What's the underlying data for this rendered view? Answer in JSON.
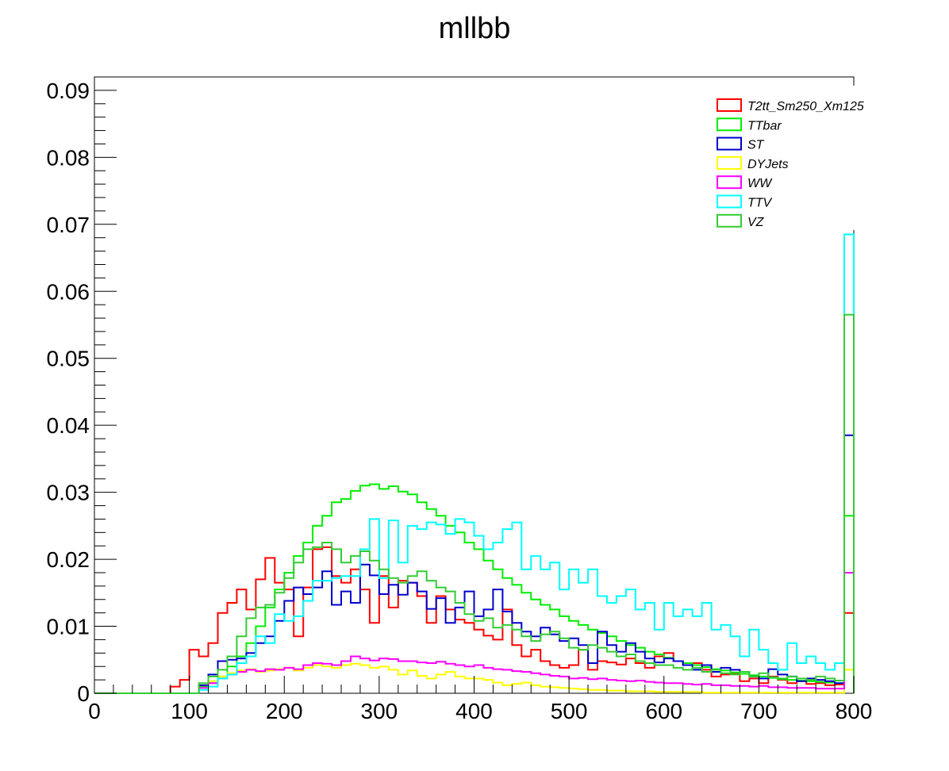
{
  "chart_data": {
    "type": "line",
    "title": "mllbb",
    "xlabel": "",
    "ylabel": "",
    "xlim": [
      0,
      800
    ],
    "ylim": [
      0,
      0.092
    ],
    "bin_width": 10,
    "grid": false,
    "legend_position": "top-right",
    "x_ticks": [
      "0",
      "100",
      "200",
      "300",
      "400",
      "500",
      "600",
      "700",
      "800"
    ],
    "y_ticks": [
      "0",
      "0.01",
      "0.02",
      "0.03",
      "0.04",
      "0.05",
      "0.06",
      "0.07",
      "0.08",
      "0.09"
    ],
    "series": [
      {
        "name": "T2tt_Sm250_Xm125",
        "color": "#ff0000",
        "values": [
          0,
          0,
          0,
          0,
          0,
          0,
          0,
          0,
          0.001,
          0.002,
          0.0065,
          0.0055,
          0.0075,
          0.012,
          0.0135,
          0.0155,
          0.0125,
          0.017,
          0.0202,
          0.0165,
          0.0155,
          0.0085,
          0.0158,
          0.0215,
          0.0218,
          0.0175,
          0.0165,
          0.0185,
          0.0155,
          0.0105,
          0.0175,
          0.0128,
          0.0168,
          0.0165,
          0.0145,
          0.0105,
          0.0145,
          0.0125,
          0.011,
          0.0105,
          0.0095,
          0.0086,
          0.008,
          0.0125,
          0.0072,
          0.0055,
          0.0065,
          0.0048,
          0.0042,
          0.0038,
          0.0042,
          0.0065,
          0.0035,
          0.0048,
          0.0046,
          0.0043,
          0.0052,
          0.0045,
          0.0038,
          0.0055,
          0.006,
          0.0048,
          0.0042,
          0.0045,
          0.0035,
          0.0025,
          0.0028,
          0.003,
          0.0018,
          0.0022,
          0.0015,
          0.0025,
          0.002,
          0.0015,
          0.0018,
          0.0014,
          0.0015,
          0.0012,
          0.0013,
          0.012
        ]
      },
      {
        "name": "TTbar",
        "color": "#00ee00",
        "values": [
          0,
          0,
          0,
          0,
          0,
          0,
          0,
          0,
          0,
          0,
          0,
          0.001,
          0.0015,
          0.0025,
          0.004,
          0.0055,
          0.0075,
          0.01,
          0.0128,
          0.0155,
          0.018,
          0.0205,
          0.0225,
          0.025,
          0.0265,
          0.0285,
          0.029,
          0.0302,
          0.031,
          0.0312,
          0.0305,
          0.0309,
          0.0301,
          0.0297,
          0.0285,
          0.0275,
          0.0265,
          0.025,
          0.024,
          0.0225,
          0.0215,
          0.0198,
          0.0185,
          0.0172,
          0.0162,
          0.015,
          0.014,
          0.0132,
          0.0125,
          0.0115,
          0.0108,
          0.0102,
          0.0095,
          0.009,
          0.0085,
          0.0078,
          0.0072,
          0.0068,
          0.0062,
          0.0058,
          0.0053,
          0.0048,
          0.0045,
          0.0042,
          0.0039,
          0.0036,
          0.0034,
          0.0031,
          0.0029,
          0.0027,
          0.0025,
          0.0023,
          0.0021,
          0.002,
          0.0019,
          0.0018,
          0.0017,
          0.0016,
          0.0015,
          0.0265
        ]
      },
      {
        "name": "ST",
        "color": "#0000cc",
        "values": [
          0,
          0,
          0,
          0,
          0,
          0,
          0,
          0,
          0,
          0,
          0,
          0.0012,
          0.0028,
          0.0048,
          0.005,
          0.0052,
          0.006,
          0.0075,
          0.0085,
          0.0108,
          0.0138,
          0.0158,
          0.0148,
          0.0158,
          0.0182,
          0.0132,
          0.0152,
          0.0135,
          0.0192,
          0.0176,
          0.0148,
          0.0162,
          0.0147,
          0.0165,
          0.0152,
          0.0126,
          0.0142,
          0.0105,
          0.0128,
          0.0152,
          0.0115,
          0.0125,
          0.0155,
          0.0122,
          0.0105,
          0.0092,
          0.0085,
          0.0098,
          0.0088,
          0.0078,
          0.0082,
          0.0072,
          0.0045,
          0.0092,
          0.0072,
          0.0062,
          0.0075,
          0.0062,
          0.0052,
          0.0046,
          0.0052,
          0.0048,
          0.0042,
          0.0035,
          0.0042,
          0.0032,
          0.0038,
          0.0035,
          0.0032,
          0.0025,
          0.0022,
          0.0036,
          0.0028,
          0.0025,
          0.0018,
          0.0022,
          0.002,
          0.0018,
          0.0015,
          0.0385
        ]
      },
      {
        "name": "DYJets",
        "color": "#ffff00",
        "values": [
          0,
          0,
          0,
          0,
          0,
          0,
          0,
          0,
          0,
          0,
          0,
          0.0008,
          0.0018,
          0.0025,
          0.003,
          0.0034,
          0.0036,
          0.0032,
          0.0034,
          0.0036,
          0.0038,
          0.0034,
          0.0038,
          0.0042,
          0.004,
          0.0038,
          0.0042,
          0.0044,
          0.0042,
          0.0038,
          0.004,
          0.0035,
          0.0028,
          0.0034,
          0.0026,
          0.0022,
          0.0028,
          0.0032,
          0.0025,
          0.0022,
          0.0022,
          0.002,
          0.0016,
          0.0012,
          0.0014,
          0.0016,
          0.0012,
          0.001,
          0.0009,
          0.0008,
          0.0007,
          0.0006,
          0.0005,
          0.0005,
          0.0004,
          0.0004,
          0.0003,
          0.0003,
          0.0003,
          0.0002,
          0.0002,
          0.0002,
          0.0002,
          0.0002,
          0.0001,
          0.0001,
          0.0001,
          0.0001,
          0.0001,
          0.0001,
          0.0001,
          0.0001,
          0.0001,
          0.0001,
          0.0001,
          0.0001,
          0.0001,
          0.0001,
          0.0001,
          0.0035
        ]
      },
      {
        "name": "WW",
        "color": "#ff00ff",
        "values": [
          0,
          0,
          0,
          0,
          0,
          0,
          0,
          0,
          0,
          0,
          0,
          0.0008,
          0.0015,
          0.0022,
          0.0028,
          0.0032,
          0.0035,
          0.0033,
          0.0036,
          0.0035,
          0.0038,
          0.0036,
          0.0042,
          0.0045,
          0.0044,
          0.0042,
          0.0048,
          0.0055,
          0.0052,
          0.0049,
          0.0052,
          0.0051,
          0.0048,
          0.0048,
          0.0046,
          0.0045,
          0.0047,
          0.0044,
          0.0042,
          0.004,
          0.0042,
          0.0038,
          0.0036,
          0.0035,
          0.0033,
          0.0032,
          0.003,
          0.0028,
          0.0026,
          0.0025,
          0.0022,
          0.0023,
          0.0021,
          0.0022,
          0.002,
          0.0019,
          0.0018,
          0.0019,
          0.0017,
          0.0016,
          0.0015,
          0.0015,
          0.0014,
          0.0013,
          0.0014,
          0.0012,
          0.0012,
          0.0011,
          0.0011,
          0.001,
          0.0011,
          0.0009,
          0.0009,
          0.0008,
          0.0008,
          0.0008,
          0.0007,
          0.0007,
          0.0007,
          0.018
        ]
      },
      {
        "name": "TTV",
        "color": "#00ffff",
        "values": [
          0,
          0,
          0,
          0,
          0,
          0,
          0,
          0,
          0,
          0,
          0,
          0.0005,
          0.001,
          0.0022,
          0.0028,
          0.0045,
          0.0055,
          0.0085,
          0.0075,
          0.0118,
          0.0108,
          0.0115,
          0.0138,
          0.0168,
          0.0168,
          0.0172,
          0.0175,
          0.0175,
          0.0215,
          0.026,
          0.0172,
          0.0258,
          0.0195,
          0.025,
          0.0245,
          0.0255,
          0.0252,
          0.0238,
          0.026,
          0.0255,
          0.0235,
          0.0215,
          0.0225,
          0.0245,
          0.0255,
          0.0185,
          0.0205,
          0.0185,
          0.0195,
          0.0155,
          0.0185,
          0.0165,
          0.0185,
          0.0145,
          0.0135,
          0.0145,
          0.0155,
          0.0125,
          0.0135,
          0.0095,
          0.0135,
          0.0115,
          0.0125,
          0.0115,
          0.0135,
          0.0095,
          0.0102,
          0.0085,
          0.0055,
          0.0095,
          0.0065,
          0.0045,
          0.0035,
          0.0075,
          0.0045,
          0.0055,
          0.0045,
          0.0035,
          0.0045,
          0.0685
        ]
      },
      {
        "name": "VZ",
        "color": "#33cc33",
        "values": [
          0,
          0,
          0,
          0,
          0,
          0,
          0,
          0,
          0,
          0,
          0,
          0.0015,
          0.0025,
          0.0035,
          0.0055,
          0.0085,
          0.0112,
          0.0128,
          0.0132,
          0.015,
          0.0172,
          0.0195,
          0.0215,
          0.0218,
          0.0225,
          0.0215,
          0.0195,
          0.0205,
          0.0212,
          0.0198,
          0.0185,
          0.0172,
          0.0165,
          0.0175,
          0.0182,
          0.0168,
          0.0158,
          0.0152,
          0.0135,
          0.0118,
          0.0108,
          0.0112,
          0.0098,
          0.0102,
          0.0095,
          0.0085,
          0.0078,
          0.0088,
          0.0092,
          0.0082,
          0.0068,
          0.0065,
          0.0072,
          0.0068,
          0.0062,
          0.0055,
          0.0058,
          0.0048,
          0.0045,
          0.0042,
          0.0042,
          0.0038,
          0.0035,
          0.0038,
          0.0032,
          0.0035,
          0.003,
          0.0028,
          0.0032,
          0.0025,
          0.003,
          0.0024,
          0.0022,
          0.0025,
          0.0022,
          0.002,
          0.0025,
          0.0022,
          0.0019,
          0.0565
        ]
      }
    ]
  }
}
